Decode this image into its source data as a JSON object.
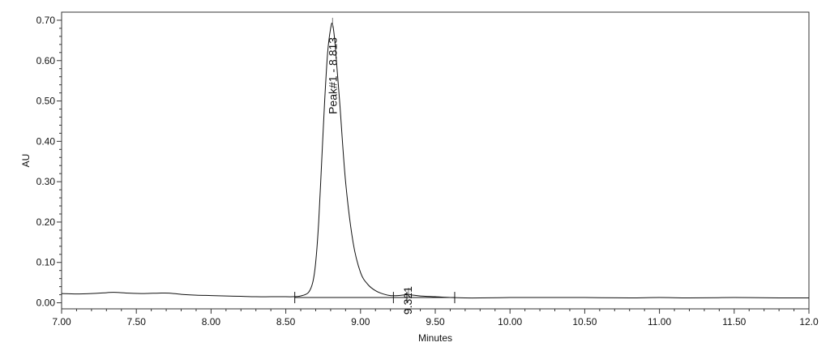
{
  "chart_data": {
    "type": "line",
    "xlabel": "Minutes",
    "ylabel": "AU",
    "xlim": [
      7.0,
      12.0
    ],
    "ylim": [
      -0.015,
      0.72
    ],
    "x_ticks": [
      7.0,
      7.5,
      8.0,
      8.5,
      9.0,
      9.5,
      10.0,
      10.5,
      11.0,
      11.5,
      12.0
    ],
    "x_tick_labels": [
      "7.00",
      "7.50",
      "8.00",
      "8.50",
      "9.00",
      "9.50",
      "10.00",
      "10.50",
      "11.00",
      "11.50",
      "12.0"
    ],
    "y_ticks": [
      0.0,
      0.1,
      0.2,
      0.3,
      0.4,
      0.5,
      0.6,
      0.7
    ],
    "y_tick_labels": [
      "0.00",
      "0.10",
      "0.20",
      "0.30",
      "0.40",
      "0.50",
      "0.60",
      "0.70"
    ],
    "grid": false,
    "series": [
      {
        "x": [
          7.0,
          7.1,
          7.2,
          7.3,
          7.35,
          7.45,
          7.55,
          7.65,
          7.72,
          7.8,
          7.9,
          8.0,
          8.1,
          8.2,
          8.3,
          8.4,
          8.5,
          8.55,
          8.6,
          8.65,
          8.68,
          8.7,
          8.72,
          8.74,
          8.76,
          8.78,
          8.8,
          8.813,
          8.83,
          8.86,
          8.9,
          8.95,
          9.0,
          9.05,
          9.1,
          9.15,
          9.2,
          9.25,
          9.3,
          9.321,
          9.35,
          9.4,
          9.5,
          9.6,
          9.7,
          9.8,
          10.0,
          10.2,
          10.5,
          10.8,
          11.0,
          11.2,
          11.5,
          11.8,
          12.0
        ],
        "y": [
          0.023,
          0.022,
          0.023,
          0.025,
          0.026,
          0.024,
          0.023,
          0.024,
          0.024,
          0.021,
          0.019,
          0.018,
          0.017,
          0.016,
          0.015,
          0.015,
          0.015,
          0.015,
          0.017,
          0.025,
          0.05,
          0.1,
          0.2,
          0.35,
          0.5,
          0.62,
          0.68,
          0.69,
          0.64,
          0.5,
          0.3,
          0.15,
          0.075,
          0.045,
          0.03,
          0.022,
          0.018,
          0.018,
          0.02,
          0.021,
          0.019,
          0.017,
          0.015,
          0.013,
          0.012,
          0.012,
          0.013,
          0.013,
          0.013,
          0.012,
          0.013,
          0.012,
          0.013,
          0.012,
          0.012
        ]
      }
    ],
    "baseline_y": 0.013,
    "baseline_segments": [
      [
        8.56,
        9.63
      ]
    ],
    "integration_marks_x": [
      8.56,
      9.22,
      9.31,
      9.63
    ],
    "peaks": [
      {
        "x": 8.813,
        "y": 0.69,
        "label": "Peak#1 - 8.813"
      },
      {
        "x": 9.321,
        "y": 0.021,
        "label": "9.321"
      }
    ]
  }
}
